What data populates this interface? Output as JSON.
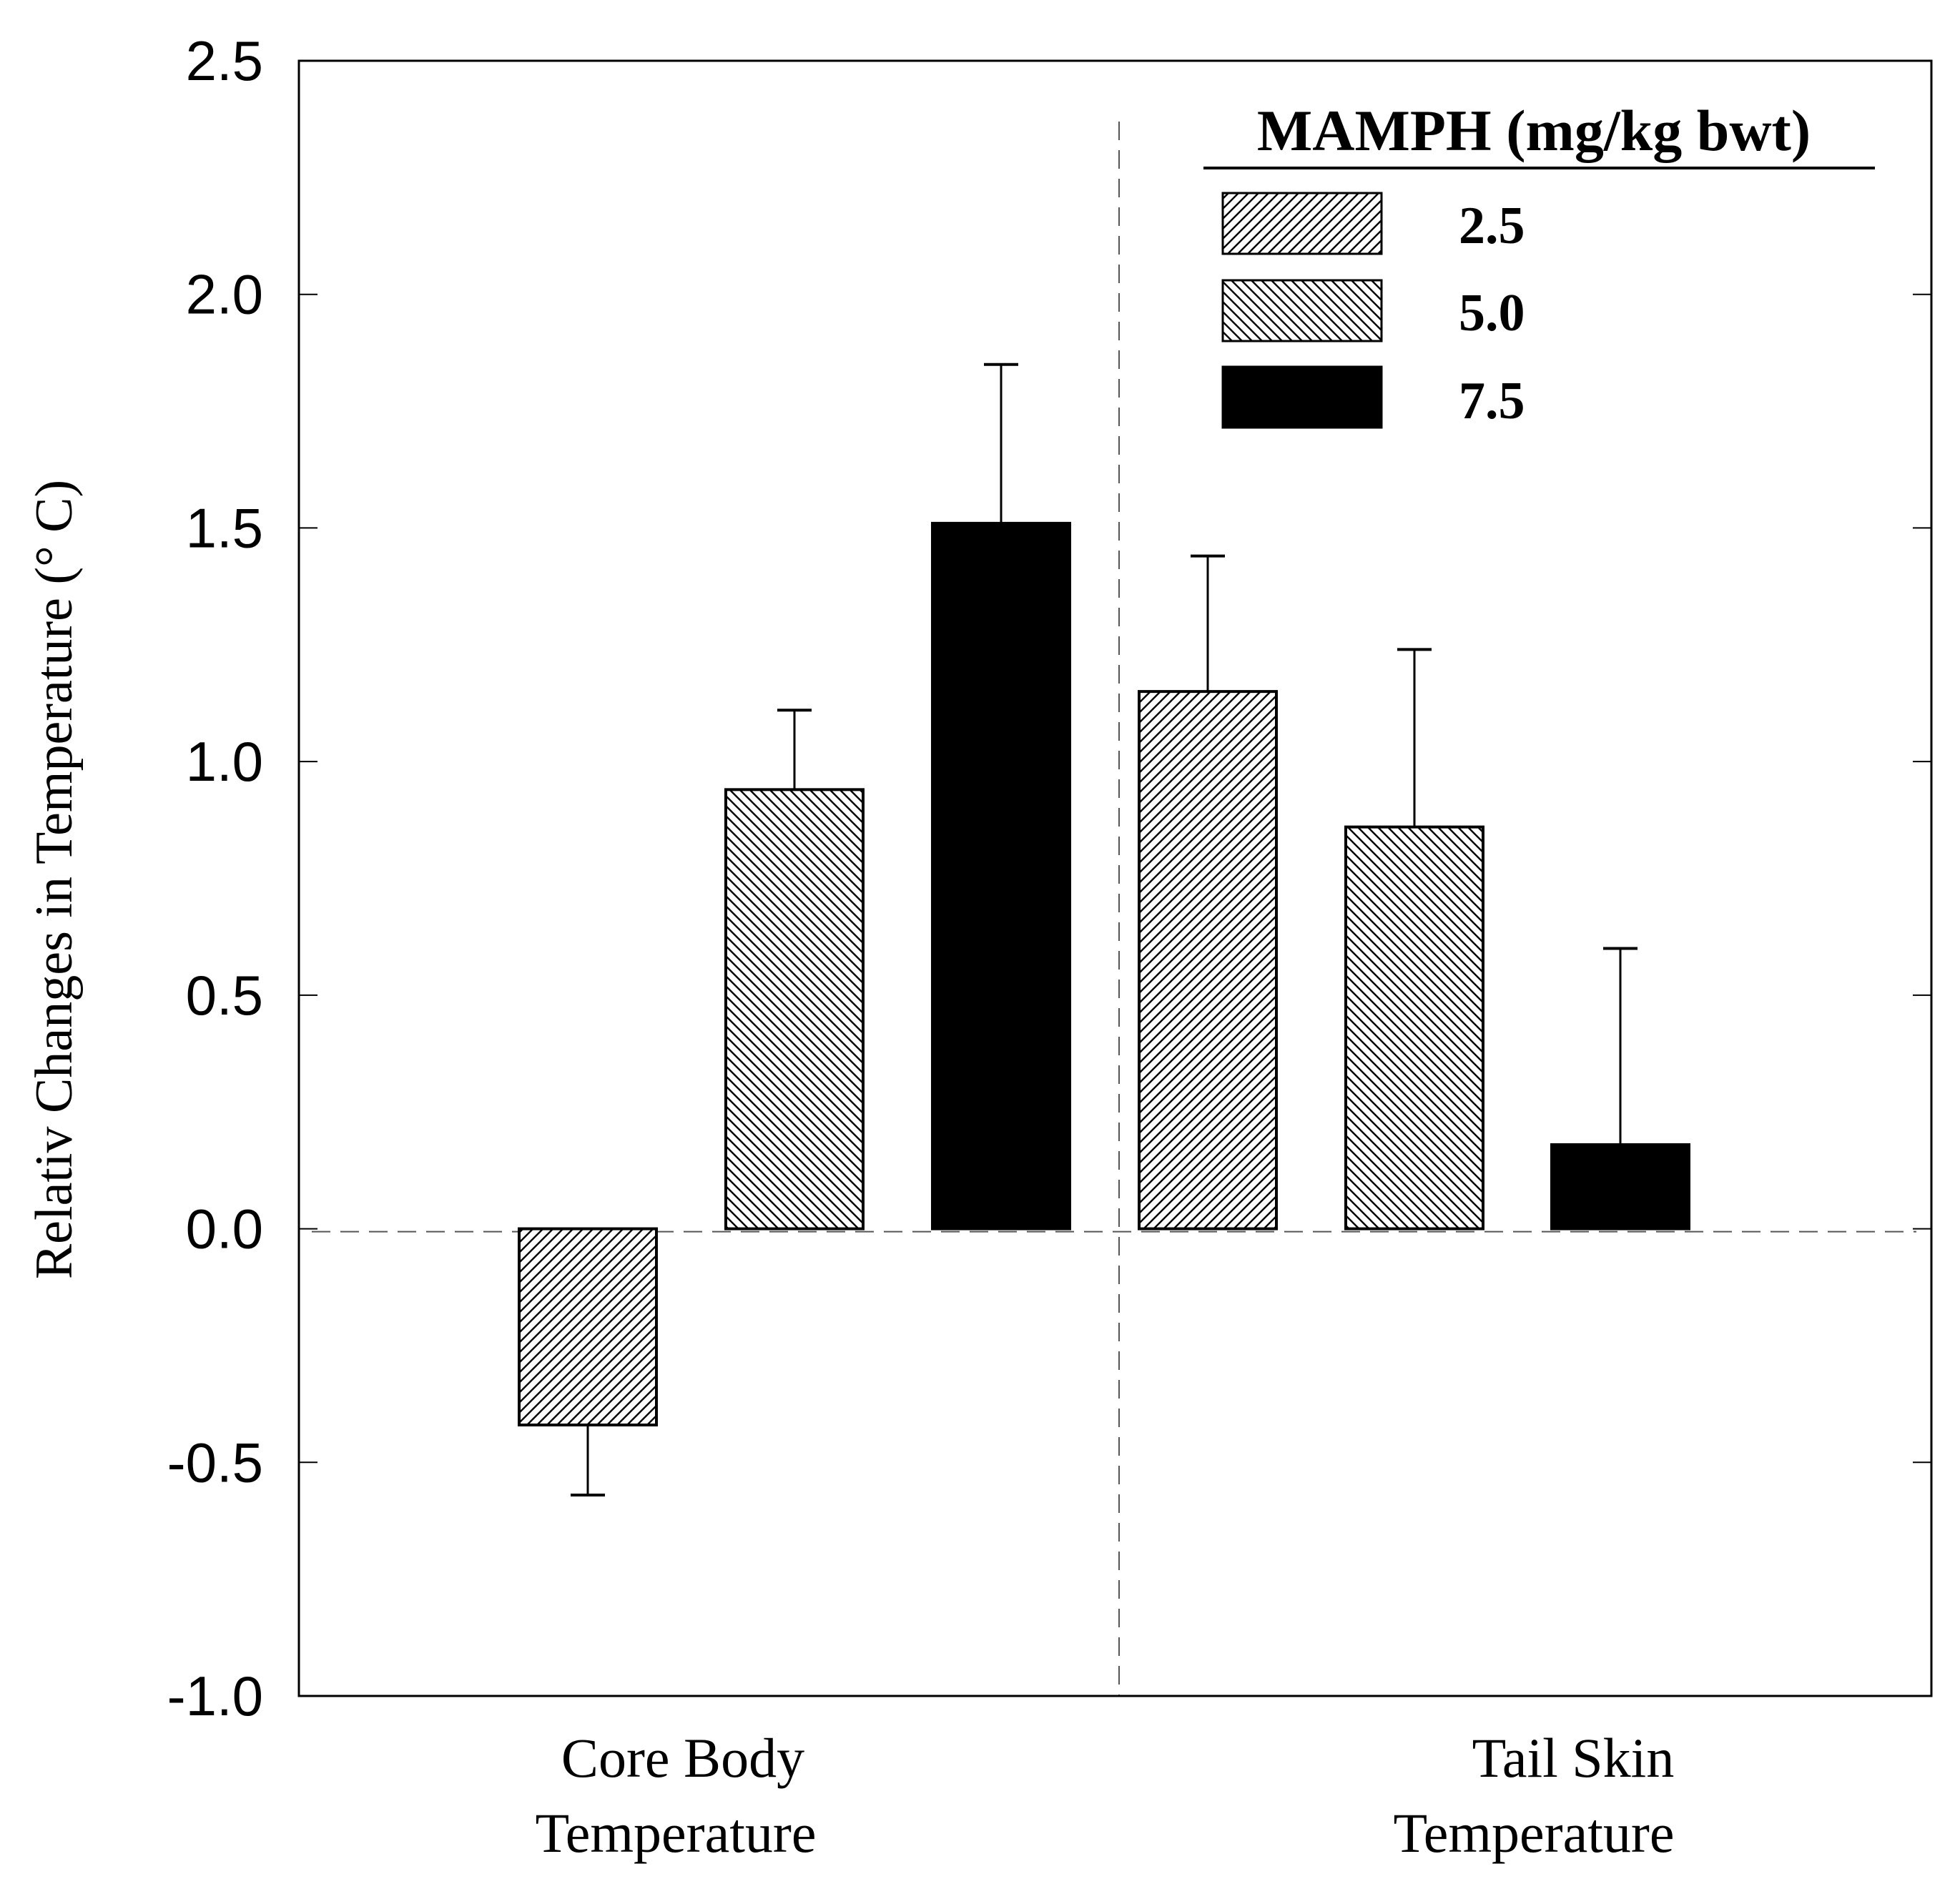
{
  "chart_data": {
    "type": "bar",
    "title": "",
    "xlabel": "",
    "ylabel": "Relativ Changes in Temperature (° C)",
    "ylim": [
      -1.0,
      2.5
    ],
    "yticks": [
      "-1.0",
      "-0.5",
      "0.0",
      "0.5",
      "1.0",
      "1.5",
      "2.0",
      "2.5"
    ],
    "categories": [
      {
        "line1": "Core Body",
        "line2": "Temperature"
      },
      {
        "line1": "Tail Skin",
        "line2": "Temperature"
      }
    ],
    "legend": {
      "title": "MAMPH (mg/kg bwt)",
      "position": "top-right"
    },
    "series": [
      {
        "name": "2.5",
        "pattern": "hatch-right",
        "values": [
          -0.42,
          1.15
        ],
        "errors": [
          0.15,
          0.29
        ]
      },
      {
        "name": "5.0",
        "pattern": "hatch-left",
        "values": [
          0.94,
          0.86
        ],
        "errors": [
          0.17,
          0.38
        ]
      },
      {
        "name": "7.5",
        "pattern": "solid-black",
        "values": [
          1.51,
          0.18
        ],
        "errors": [
          0.34,
          0.42
        ]
      }
    ],
    "colors": {
      "bar_edge": "#000000",
      "solid_fill": "#000000",
      "reference_line": "#555555"
    }
  }
}
